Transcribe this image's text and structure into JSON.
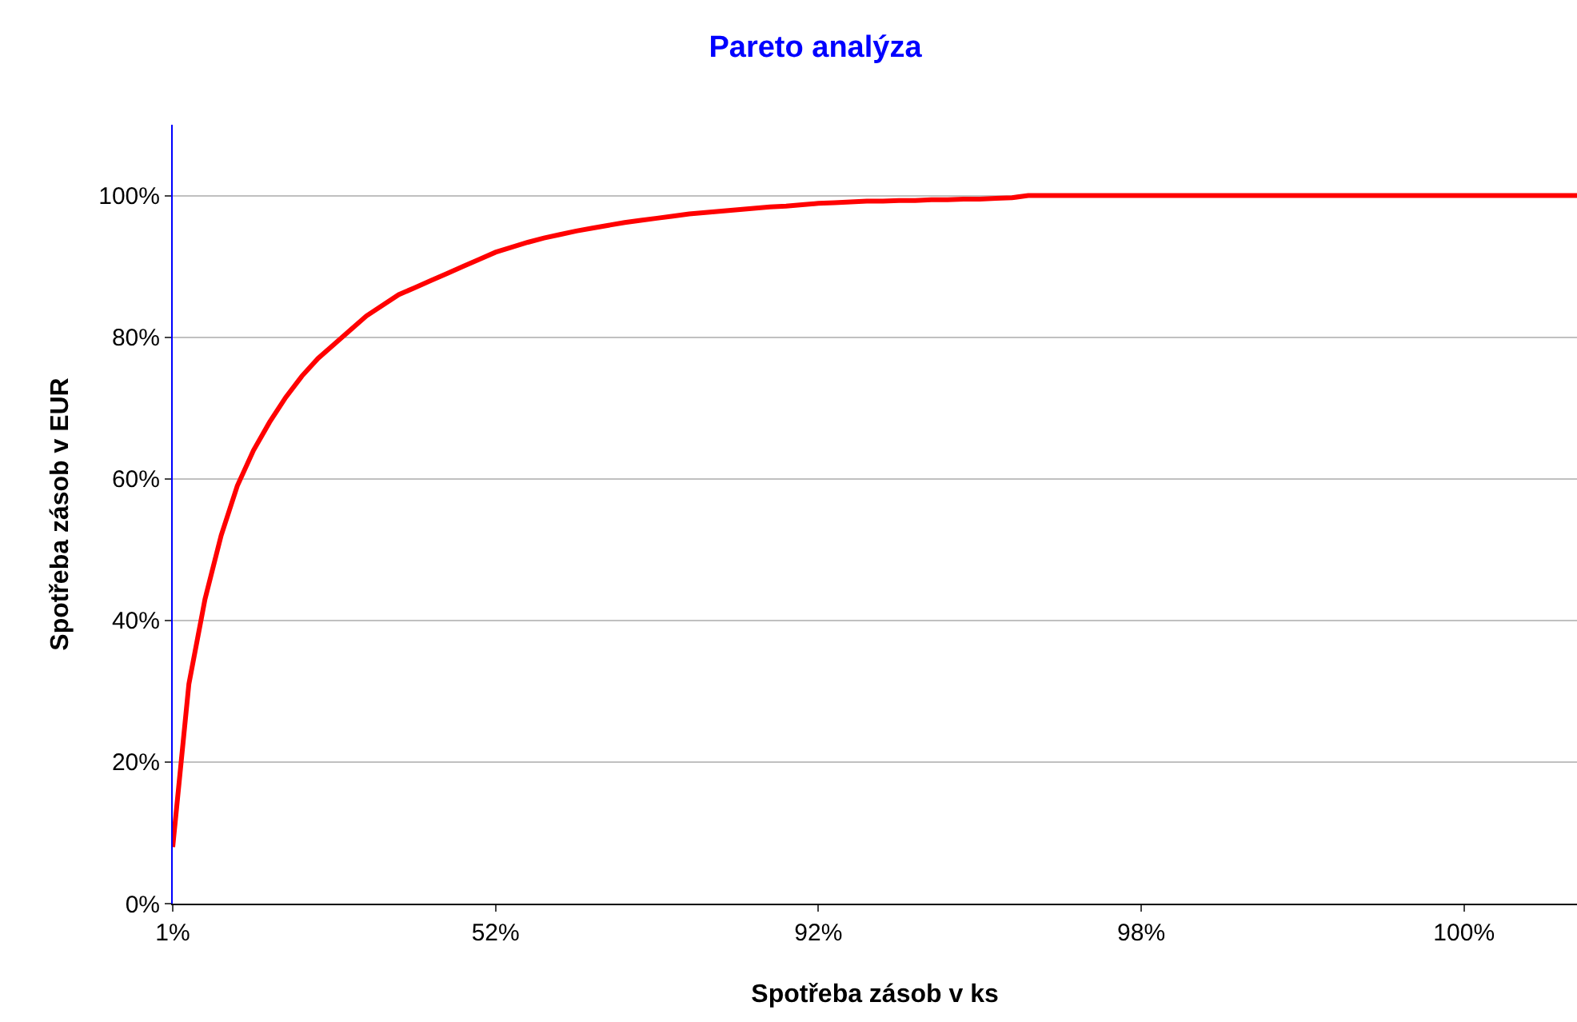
{
  "chart_data": {
    "type": "line",
    "title": "Pareto analýza",
    "xlabel": "Spotřeba zásob v ks",
    "ylabel": "Spotřeba zásob v EUR",
    "categories": [
      "1%",
      null,
      null,
      null,
      null,
      null,
      null,
      null,
      null,
      null,
      null,
      null,
      null,
      null,
      null,
      null,
      null,
      null,
      null,
      null,
      "52%",
      null,
      null,
      null,
      null,
      null,
      null,
      null,
      null,
      null,
      null,
      null,
      null,
      null,
      null,
      null,
      null,
      null,
      null,
      null,
      "92%",
      null,
      null,
      null,
      null,
      null,
      null,
      null,
      null,
      null,
      null,
      null,
      null,
      null,
      null,
      null,
      null,
      null,
      null,
      null,
      "98%",
      null,
      null,
      null,
      null,
      null,
      null,
      null,
      null,
      null,
      null,
      null,
      null,
      null,
      null,
      null,
      null,
      null,
      null,
      null,
      "100%",
      null,
      null,
      null,
      null,
      null,
      null,
      null
    ],
    "series": [
      {
        "color": "#ff0000",
        "values": [
          8,
          31,
          43,
          52,
          59,
          64,
          68,
          71.5,
          74.5,
          77,
          79,
          81,
          83,
          84.5,
          86,
          87,
          88,
          89,
          90,
          91,
          92,
          92.7,
          93.4,
          94,
          94.5,
          95,
          95.4,
          95.8,
          96.2,
          96.5,
          96.8,
          97.1,
          97.4,
          97.6,
          97.8,
          98,
          98.2,
          98.4,
          98.5,
          98.7,
          98.9,
          99,
          99.1,
          99.2,
          99.2,
          99.3,
          99.3,
          99.4,
          99.4,
          99.5,
          99.5,
          99.6,
          99.7,
          100,
          100,
          100,
          100,
          100,
          100,
          100,
          100,
          100,
          100,
          100,
          100,
          100,
          100,
          100,
          100,
          100,
          100,
          100,
          100,
          100,
          100,
          100,
          100,
          100,
          100,
          100,
          100,
          100,
          100,
          100,
          100,
          100,
          100,
          100
        ]
      }
    ],
    "ylim": [
      0,
      110
    ],
    "yticks": [
      {
        "value": 0,
        "label": "0%"
      },
      {
        "value": 20,
        "label": "20%"
      },
      {
        "value": 40,
        "label": "40%"
      },
      {
        "value": 60,
        "label": "60%"
      },
      {
        "value": 80,
        "label": "80%"
      },
      {
        "value": 100,
        "label": "100%"
      }
    ],
    "grid": "y",
    "marker": "none",
    "line_style": "solid"
  }
}
